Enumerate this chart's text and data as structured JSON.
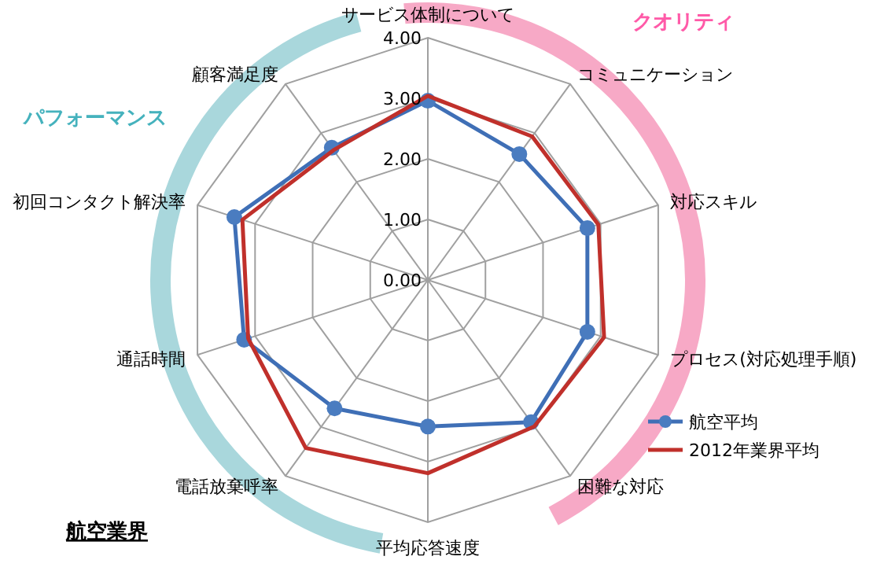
{
  "chart_data": {
    "type": "radar",
    "title": "航空業界",
    "categories": [
      "サービス体制について",
      "コミュニケーション",
      "対応スキル",
      "プロセス(対応処理手順)",
      "困難な対応",
      "平均応答速度",
      "電話放棄呼率",
      "通話時間",
      "初回コンタクト解決率",
      "顧客満足度"
    ],
    "series": [
      {
        "name": "航空平均",
        "color": "#3f6fb6",
        "marker": "circle",
        "values": [
          2.96,
          2.57,
          2.77,
          2.77,
          2.9,
          2.42,
          2.62,
          3.19,
          3.36,
          2.7
        ]
      },
      {
        "name": "2012年業界平均",
        "color": "#c0302b",
        "marker": "none",
        "values": [
          3.04,
          2.93,
          2.96,
          3.06,
          2.99,
          3.19,
          3.43,
          3.12,
          3.22,
          2.65
        ]
      }
    ],
    "ylim": [
      0,
      4
    ],
    "yticks": [
      {
        "value": 0,
        "label": "0.00"
      },
      {
        "value": 1,
        "label": "1.00"
      },
      {
        "value": 2,
        "label": "2.00"
      },
      {
        "value": 3,
        "label": "3.00"
      },
      {
        "value": 4,
        "label": "4.00"
      }
    ],
    "annotations": [
      "クオリティ",
      "パフォーマンス"
    ],
    "legend": "right"
  }
}
